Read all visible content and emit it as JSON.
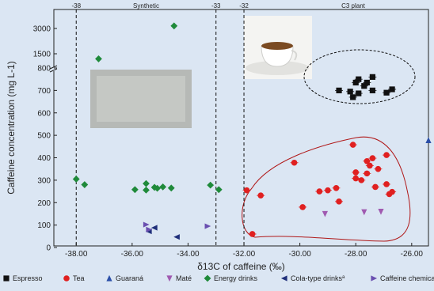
{
  "chart_data": {
    "type": "scatter",
    "xlabel": "δ13C of caffeine (‰)",
    "ylabel": "Caffeine concentration (mg L-1)",
    "xlim": [
      -38.8,
      -25.4
    ],
    "x_ticks": [
      -38.0,
      -36.0,
      -34.0,
      -32.0,
      -30.0,
      -28.0,
      -26.0
    ],
    "x_tick_labels": [
      "-38.00",
      "-36.00",
      "-34.00",
      "-32.00",
      "-30.00",
      "-28.00",
      "-26.00"
    ],
    "y_axis": "broken",
    "y_ticks": [
      0,
      100,
      200,
      300,
      400,
      500,
      600,
      700,
      800,
      1500,
      3000
    ],
    "y_tick_labels": [
      "0",
      "100",
      "200",
      "300",
      "400",
      "500",
      "600",
      "700",
      "800",
      "1500",
      "3000"
    ],
    "grid": false,
    "legend_position": "bottom",
    "reference_lines": [
      {
        "x": -38,
        "label": "-38"
      },
      {
        "x": -33,
        "label": "-33"
      },
      {
        "x": -32,
        "label": "-32"
      }
    ],
    "region_labels": [
      {
        "text": "Synthetic"
      },
      {
        "text": "C3 plant"
      }
    ],
    "series": [
      {
        "name": "Espresso",
        "color": "#111111",
        "marker": "square",
        "points": [
          [
            -27.9,
            750
          ],
          [
            -27.4,
            760
          ],
          [
            -27.6,
            735
          ],
          [
            -28.0,
            735
          ],
          [
            -27.7,
            720
          ],
          [
            -28.6,
            700
          ],
          [
            -28.2,
            695
          ],
          [
            -27.9,
            687
          ],
          [
            -28.1,
            670
          ],
          [
            -27.4,
            700
          ],
          [
            -26.7,
            705
          ],
          [
            -26.9,
            690
          ]
        ]
      },
      {
        "name": "Tea",
        "color": "#e02020",
        "marker": "circle",
        "points": [
          [
            -31.9,
            255
          ],
          [
            -31.4,
            232
          ],
          [
            -31.7,
            60
          ],
          [
            -30.2,
            378
          ],
          [
            -29.9,
            180
          ],
          [
            -29.3,
            250
          ],
          [
            -29.0,
            255
          ],
          [
            -28.7,
            265
          ],
          [
            -28.6,
            205
          ],
          [
            -28.1,
            458
          ],
          [
            -28.0,
            335
          ],
          [
            -28.0,
            308
          ],
          [
            -27.8,
            300
          ],
          [
            -27.6,
            385
          ],
          [
            -27.5,
            365
          ],
          [
            -27.6,
            330
          ],
          [
            -27.4,
            398
          ],
          [
            -27.2,
            350
          ],
          [
            -27.3,
            270
          ],
          [
            -26.9,
            282
          ],
          [
            -26.9,
            412
          ],
          [
            -26.7,
            248
          ],
          [
            -26.8,
            238
          ]
        ]
      },
      {
        "name": "Guaraná",
        "color": "#2b4fa8",
        "marker": "triangle-up",
        "points": [
          [
            -25.4,
            478
          ]
        ]
      },
      {
        "name": "Maté",
        "color": "#a05ab0",
        "marker": "triangle-down",
        "points": [
          [
            -29.1,
            150
          ],
          [
            -27.7,
            158
          ],
          [
            -27.1,
            160
          ]
        ]
      },
      {
        "name": "Energy drinks",
        "color": "#1f8a3a",
        "marker": "diamond",
        "points": [
          [
            -34.5,
            3150
          ],
          [
            -37.2,
            1250
          ],
          [
            -38.0,
            305
          ],
          [
            -37.7,
            280
          ],
          [
            -35.9,
            258
          ],
          [
            -35.5,
            285
          ],
          [
            -35.5,
            256
          ],
          [
            -35.2,
            268
          ],
          [
            -35.1,
            264
          ],
          [
            -34.9,
            270
          ],
          [
            -34.6,
            265
          ],
          [
            -33.2,
            278
          ],
          [
            -32.9,
            258
          ]
        ]
      },
      {
        "name": "Cola-type drinks",
        "color": "#1f2f7a",
        "marker": "triangle-left",
        "points": [
          [
            -35.4,
            72
          ],
          [
            -35.2,
            88
          ],
          [
            -34.4,
            47
          ]
        ]
      },
      {
        "name": "Caffeine chemicals",
        "color": "#6a4fb0",
        "marker": "triangle-right",
        "points": [
          [
            -35.5,
            102
          ],
          [
            -35.4,
            80
          ],
          [
            -33.3,
            95
          ]
        ]
      }
    ],
    "legend_note_superscript": "a"
  }
}
